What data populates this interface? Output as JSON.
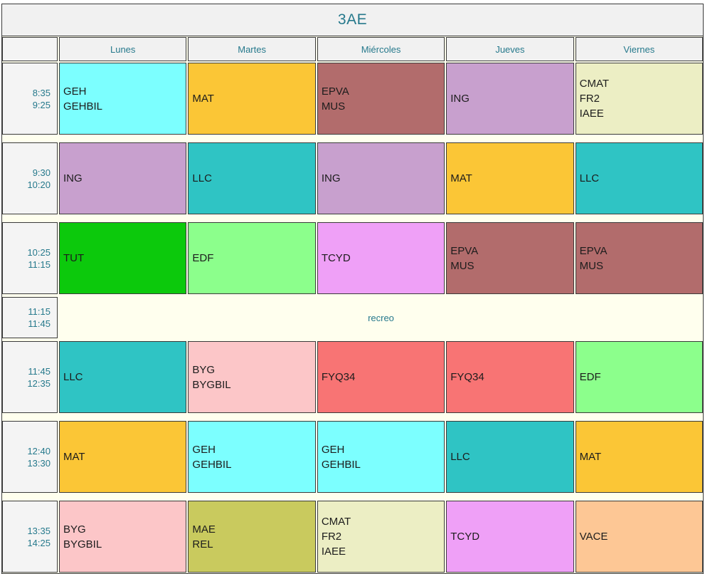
{
  "title": "3AE",
  "days": [
    "Lunes",
    "Martes",
    "Miércoles",
    "Jueves",
    "Viernes"
  ],
  "theme": {
    "accent_text": "#26798c",
    "grid_border": "#3b3b3b",
    "header_bg": "#f1f1f1",
    "time_bg": "#f4f4f4",
    "gap_bg": "#ffffee",
    "page_bg": "#ffffff",
    "cell_text": "#1c1c1c"
  },
  "rows": [
    {
      "type": "class",
      "start": "8:35",
      "end": "9:25",
      "cells": [
        {
          "subjects": [
            "GEH",
            "GEHBIL"
          ],
          "color": "#7cffff"
        },
        {
          "subjects": [
            "MAT"
          ],
          "color": "#fbc636"
        },
        {
          "subjects": [
            "EPVA",
            "MUS"
          ],
          "color": "#b26c6c"
        },
        {
          "subjects": [
            "ING"
          ],
          "color": "#c8a0ce"
        },
        {
          "subjects": [
            "CMAT",
            "FR2",
            "IAEE"
          ],
          "color": "#eceec4"
        }
      ]
    },
    {
      "type": "class",
      "start": "9:30",
      "end": "10:20",
      "cells": [
        {
          "subjects": [
            "ING"
          ],
          "color": "#c8a0ce"
        },
        {
          "subjects": [
            "LLC"
          ],
          "color": "#2fc4c4"
        },
        {
          "subjects": [
            "ING"
          ],
          "color": "#c8a0ce"
        },
        {
          "subjects": [
            "MAT"
          ],
          "color": "#fbc636"
        },
        {
          "subjects": [
            "LLC"
          ],
          "color": "#2fc4c4"
        }
      ]
    },
    {
      "type": "class",
      "start": "10:25",
      "end": "11:15",
      "cells": [
        {
          "subjects": [
            "TUT"
          ],
          "color": "#0cc90c"
        },
        {
          "subjects": [
            "EDF"
          ],
          "color": "#8cff8c"
        },
        {
          "subjects": [
            "TCYD"
          ],
          "color": "#efa0f7"
        },
        {
          "subjects": [
            "EPVA",
            "MUS"
          ],
          "color": "#b26c6c"
        },
        {
          "subjects": [
            "EPVA",
            "MUS"
          ],
          "color": "#b26c6c"
        }
      ]
    },
    {
      "type": "break",
      "start": "11:15",
      "end": "11:45",
      "label": "recreo"
    },
    {
      "type": "class",
      "start": "11:45",
      "end": "12:35",
      "cells": [
        {
          "subjects": [
            "LLC"
          ],
          "color": "#2fc4c4"
        },
        {
          "subjects": [
            "BYG",
            "BYGBIL"
          ],
          "color": "#fcc6c8"
        },
        {
          "subjects": [
            "FYQ34"
          ],
          "color": "#f87474"
        },
        {
          "subjects": [
            "FYQ34"
          ],
          "color": "#f87474"
        },
        {
          "subjects": [
            "EDF"
          ],
          "color": "#8cff8c"
        }
      ]
    },
    {
      "type": "class",
      "start": "12:40",
      "end": "13:30",
      "cells": [
        {
          "subjects": [
            "MAT"
          ],
          "color": "#fbc636"
        },
        {
          "subjects": [
            "GEH",
            "GEHBIL"
          ],
          "color": "#7cffff"
        },
        {
          "subjects": [
            "GEH",
            "GEHBIL"
          ],
          "color": "#7cffff"
        },
        {
          "subjects": [
            "LLC"
          ],
          "color": "#2fc4c4"
        },
        {
          "subjects": [
            "MAT"
          ],
          "color": "#fbc636"
        }
      ]
    },
    {
      "type": "class",
      "start": "13:35",
      "end": "14:25",
      "cells": [
        {
          "subjects": [
            "BYG",
            "BYGBIL"
          ],
          "color": "#fcc6c8"
        },
        {
          "subjects": [
            "MAE",
            "REL"
          ],
          "color": "#c9ca5e"
        },
        {
          "subjects": [
            "CMAT",
            "FR2",
            "IAEE"
          ],
          "color": "#eceec4"
        },
        {
          "subjects": [
            "TCYD"
          ],
          "color": "#efa0f7"
        },
        {
          "subjects": [
            "VACE"
          ],
          "color": "#fdc795"
        }
      ]
    }
  ]
}
